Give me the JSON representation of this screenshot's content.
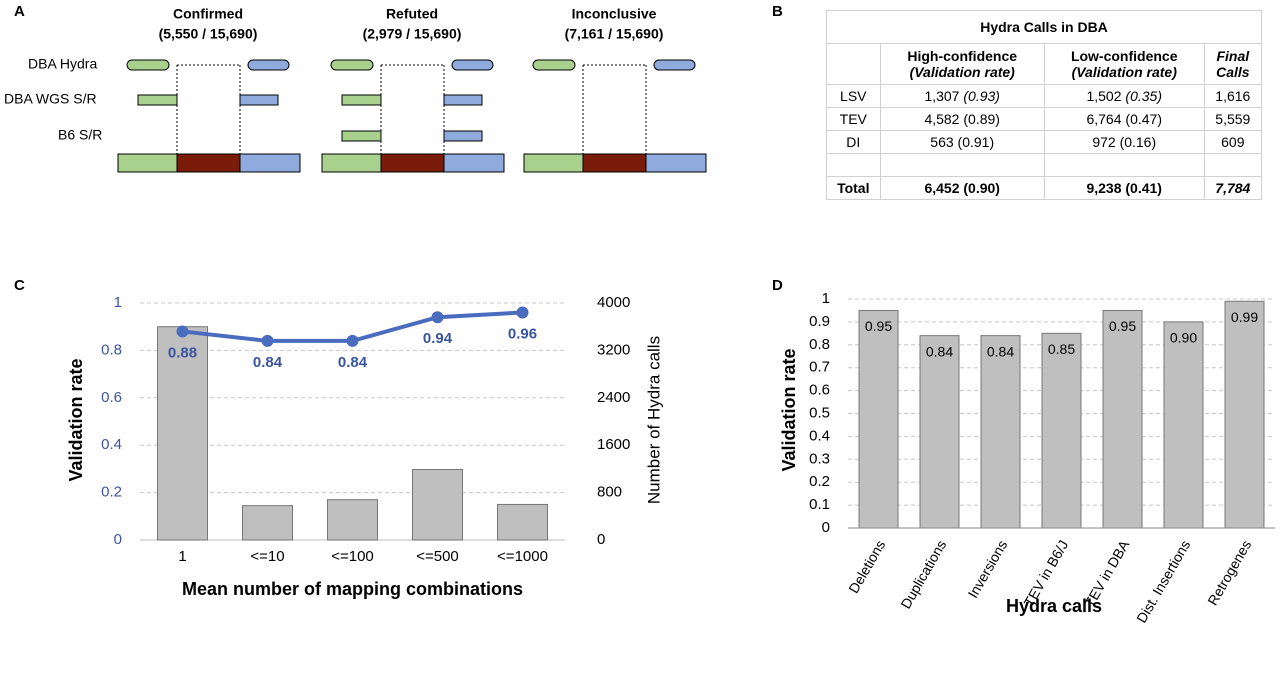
{
  "panel_labels": [
    "A",
    "B",
    "C",
    "D"
  ],
  "diagram": {
    "columns": [
      {
        "title": "Confirmed",
        "subtitle": "(5,550 / 15,690)"
      },
      {
        "title": "Refuted",
        "subtitle": "(2,979 / 15,690)"
      },
      {
        "title": "Inconclusive",
        "subtitle": "(7,161 / 15,690)"
      }
    ],
    "rows": [
      "DBA Hydra",
      "DBA WGS S/R",
      "B6 S/R"
    ]
  },
  "table": {
    "title": "Hydra Calls in DBA",
    "header": [
      [
        "High-confidence",
        "(Validation rate)"
      ],
      [
        "Low-confidence",
        "(Validation rate)"
      ],
      [
        "Final",
        "Calls"
      ]
    ],
    "rows": [
      {
        "label": "LSV",
        "high": [
          "1,307",
          "(0.93)"
        ],
        "low": [
          "1,502",
          "(0.35)"
        ],
        "final": "1,616"
      },
      {
        "label": "TEV",
        "high": [
          "4,582",
          "(0.89)"
        ],
        "low": [
          "6,764",
          "(0.47)"
        ],
        "final": "5,559"
      },
      {
        "label": "DI",
        "high": [
          "563",
          "(0.91)"
        ],
        "low": [
          "972",
          "(0.16)"
        ],
        "final": "609"
      }
    ],
    "total": {
      "label": "Total",
      "high": "6,452 (0.90)",
      "low": "9,238 (0.41)",
      "final": "7,784"
    }
  },
  "chart_data": [
    {
      "type": "bar",
      "xlabel": "Mean number of mapping combinations",
      "ylabel": "Validation rate",
      "y2label": "Number of Hydra calls",
      "categories": [
        "1",
        "<=10",
        "<=100",
        "<=500",
        "<=1000"
      ],
      "series": [
        {
          "type": "bar",
          "axis": "y2",
          "color": "#bfbfbf",
          "values": [
            3600,
            580,
            680,
            1190,
            600
          ]
        },
        {
          "type": "line",
          "color": "#4a6cbf",
          "values": [
            0.88,
            0.84,
            0.84,
            0.94,
            0.96
          ]
        }
      ],
      "ylim": [
        0,
        1
      ],
      "yticks": [
        0,
        0.2,
        0.4,
        0.6,
        0.8,
        1
      ],
      "y2lim": [
        0,
        4000
      ],
      "y2ticks": [
        0,
        800,
        1600,
        2400,
        3200,
        4000
      ],
      "grid": true
    },
    {
      "type": "bar",
      "xlabel": "Hydra calls",
      "ylabel": "Validation rate",
      "categories": [
        "Deletions",
        "Duplications",
        "Inversions",
        "TEV in B6/J",
        "TEV in DBA",
        "Dist. Insertions",
        "Retrogenes"
      ],
      "values": [
        0.95,
        0.84,
        0.84,
        0.85,
        0.95,
        0.9,
        0.99
      ],
      "value_labels": [
        "0.95",
        "0.84",
        "0.84",
        "0.85",
        "0.95",
        "0.90",
        "0.99"
      ],
      "color": "#bfbfbf",
      "ylim": [
        0,
        1
      ],
      "yticks": [
        0,
        0.1,
        0.2,
        0.3,
        0.4,
        0.5,
        0.6,
        0.7,
        0.8,
        0.9,
        1
      ],
      "grid": true
    }
  ]
}
